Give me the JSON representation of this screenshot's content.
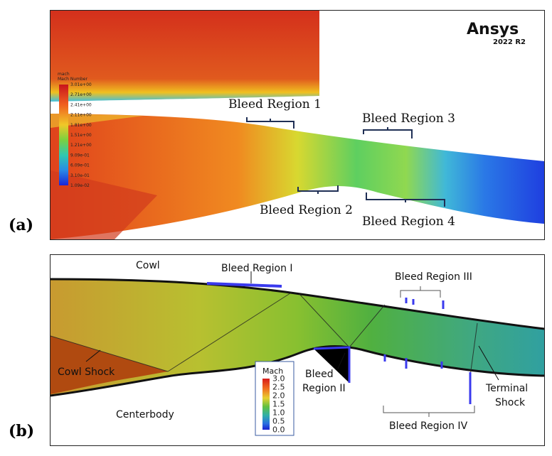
{
  "panel_a": {
    "label": "(a)",
    "logo_brand": "Ansys",
    "logo_version": "2022 R2",
    "legend_var": "mach",
    "legend_title": "Mach Number",
    "legend_ticks": [
      "3.01e+00",
      "2.71e+00",
      "2.41e+00",
      "2.11e+00",
      "1.81e+00",
      "1.51e+00",
      "1.21e+00",
      "9.09e-01",
      "6.09e-01",
      "3.10e-01",
      "1.09e-02"
    ],
    "region1": "Bleed Region 1",
    "region2": "Bleed Region 2",
    "region3": "Bleed Region 3",
    "region4": "Bleed Region 4"
  },
  "panel_b": {
    "label": "(b)",
    "cowl": "Cowl",
    "centerbody": "Centerbody",
    "cowl_shock": "Cowl Shock",
    "region_i": "Bleed Region I",
    "region_ii_line1": "Bleed",
    "region_ii_line2": "Region II",
    "region_iii": "Bleed Region III",
    "region_iv": "Bleed Region IV",
    "terminal_line1": "Terminal",
    "terminal_line2": "Shock",
    "legend_title": "Mach",
    "legend_ticks": [
      "3.0",
      "2.5",
      "2.0",
      "1.5",
      "1.0",
      "0.5",
      "0.0"
    ]
  },
  "colors": {
    "high_mach": "#d8261c",
    "mid_mach": "#5fbf3a",
    "low_mach": "#2a5be6",
    "bracket": "#1f2f55"
  }
}
